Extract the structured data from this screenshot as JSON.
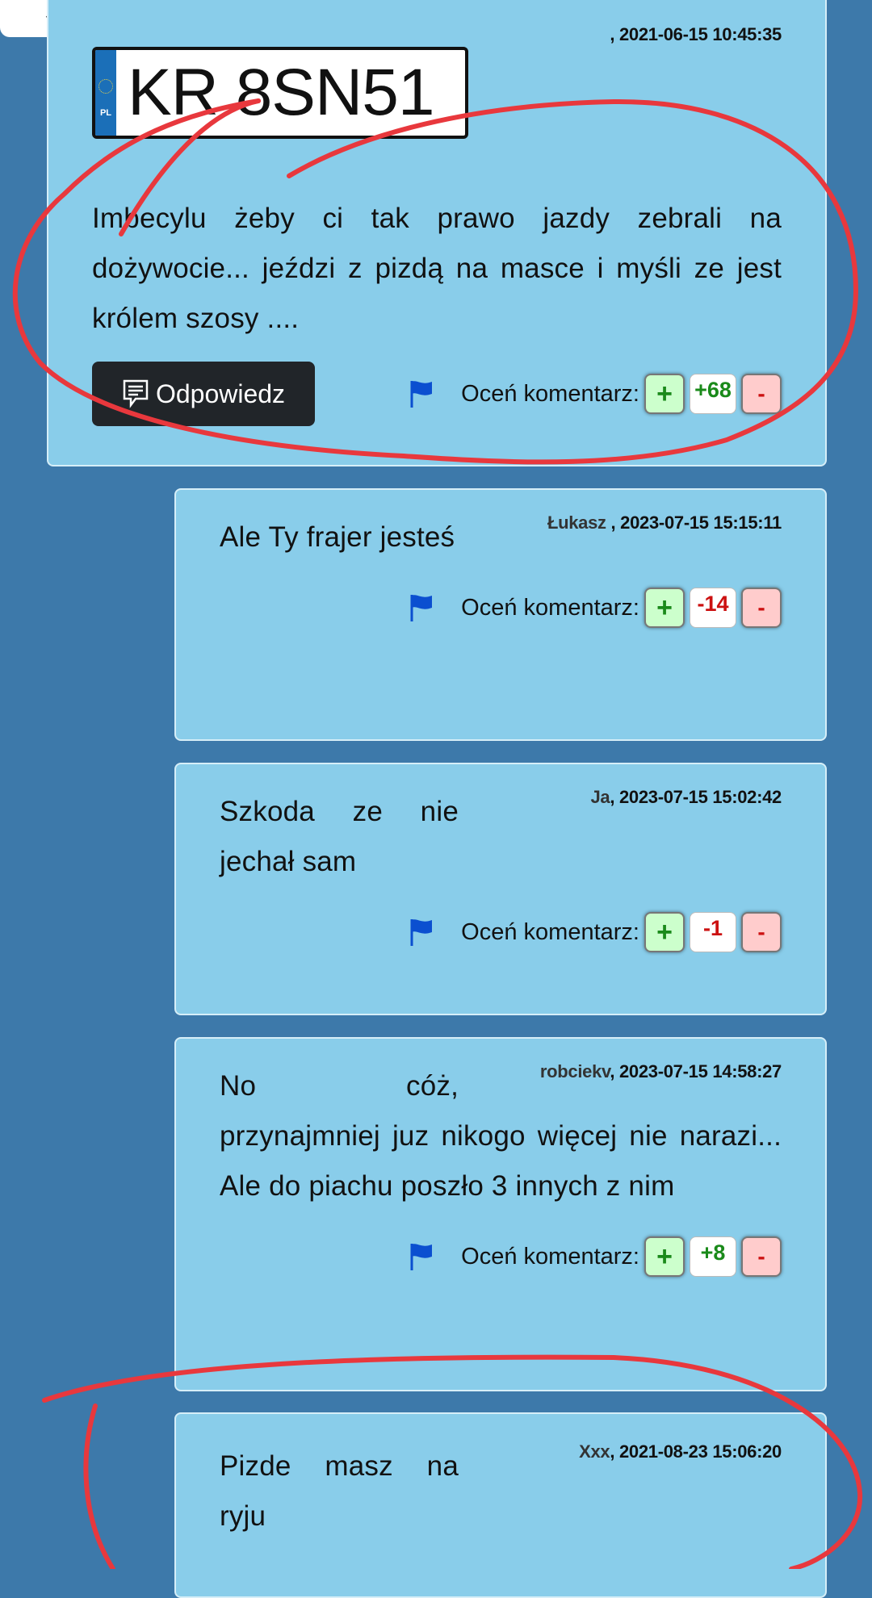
{
  "top_tab": {
    "icon": "chevron-up-icon"
  },
  "main_comment": {
    "meta": ", 2021-06-15 10:45:35",
    "plate": {
      "country": "PL",
      "number": "KR 8SN51"
    },
    "body": "Imbecylu żeby ci tak prawo jazdy zebrali na dożywocie... jeździ z pizdą na masce i myśli ze jest królem szosy ....",
    "reply_label": "Odpowiedz",
    "rate_label": "Oceń komentarz:",
    "plus": "+",
    "score": "+68",
    "minus": "-"
  },
  "replies": [
    {
      "author": "Łukasz",
      "date": " , 2023-07-15 15:15:11",
      "body": "Ale Ty frajer jesteś",
      "rate_label": "Oceń komentarz:",
      "plus": "+",
      "score": "-14",
      "minus": "-"
    },
    {
      "author": "Ja",
      "date": ", 2023-07-15 15:02:42",
      "body": "Szkoda ze nie jechał sam",
      "rate_label": "Oceń komentarz:",
      "plus": "+",
      "score": "-1",
      "minus": "-"
    },
    {
      "author": "robciekv",
      "date": ", 2023-07-15 14:58:27",
      "body": "No cóż, przynajmniej juz nikogo więcej nie narazi... Ale do piachu poszło 3 innych z nim",
      "rate_label": "Oceń komentarz:",
      "plus": "+",
      "score": "+8",
      "minus": "-"
    },
    {
      "author": "Xxx",
      "date": ", 2021-08-23 15:06:20",
      "body": "Pizde masz na ryju"
    }
  ],
  "colors": {
    "background": "#3d79aa",
    "card": "#89cdea",
    "positive": "#1a8a1a",
    "negative": "#cc1111",
    "annotation": "#e8383d"
  }
}
